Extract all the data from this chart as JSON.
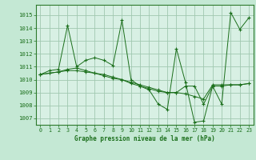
{
  "title": "Graphe pression niveau de la mer (hPa)",
  "background_color": "#c4e8d4",
  "plot_bg_color": "#d8f0e4",
  "grid_color": "#a0c8b0",
  "line_color": "#1a6e1a",
  "spine_color": "#2d7a2d",
  "ylim": [
    1006.5,
    1015.8
  ],
  "yticks": [
    1007,
    1008,
    1009,
    1010,
    1011,
    1012,
    1013,
    1014,
    1015
  ],
  "xlim": [
    -0.5,
    23.5
  ],
  "xticks": [
    0,
    1,
    2,
    3,
    4,
    5,
    6,
    7,
    8,
    9,
    10,
    11,
    12,
    13,
    14,
    15,
    16,
    17,
    18,
    19,
    20,
    21,
    22,
    23
  ],
  "series": [
    [
      1010.4,
      1010.7,
      1010.8,
      1014.2,
      1011.0,
      1011.5,
      1011.7,
      1011.5,
      1011.1,
      1014.6,
      1010.0,
      1009.5,
      1009.2,
      1008.1,
      1007.7,
      1012.4,
      1009.8,
      1006.7,
      1006.8,
      1009.5,
      1008.1,
      1015.2,
      1013.9,
      1014.8
    ],
    [
      1010.4,
      1010.5,
      1010.6,
      1010.8,
      1010.9,
      1010.7,
      1010.5,
      1010.3,
      1010.1,
      1010.0,
      1009.7,
      1009.5,
      1009.3,
      1009.1,
      1009.0,
      1009.0,
      1009.5,
      1009.5,
      1008.1,
      1009.5,
      1009.5,
      1009.6,
      1009.6,
      1009.7
    ],
    [
      1010.4,
      1010.5,
      1010.6,
      1010.7,
      1010.7,
      1010.6,
      1010.5,
      1010.4,
      1010.2,
      1010.0,
      1009.8,
      1009.6,
      1009.4,
      1009.2,
      1009.0,
      1009.0,
      1008.9,
      1008.7,
      1008.5,
      1009.6,
      1009.6,
      1009.6,
      1009.6,
      1009.7
    ]
  ]
}
